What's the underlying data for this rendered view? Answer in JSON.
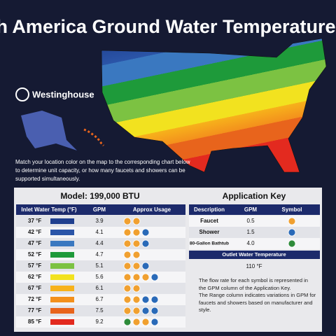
{
  "header": {
    "title": "North America Ground Water Temperature Map",
    "brand": "Westinghouse",
    "instructions": "Match your location color on the map to the corresponding chart below to determine unit capacity, or how many faucets and showers can be supported simultaneously."
  },
  "capacity_table": {
    "title": "Model: 199,000 BTU",
    "columns": [
      "Inlet Water Temp (°F)",
      "GPM",
      "Approx Usage"
    ],
    "rows": [
      [
        "37 °F",
        "3.9"
      ],
      [
        "42 °F",
        "4.1"
      ],
      [
        "47 °F",
        "4.4"
      ],
      [
        "52 °F",
        "4.7"
      ],
      [
        "57 °F",
        "5.1"
      ],
      [
        "62 °F",
        "5.6"
      ],
      [
        "67 °F",
        "6.1"
      ],
      [
        "72 °F",
        "6.7"
      ],
      [
        "77 °F",
        "7.5"
      ],
      [
        "85 °F",
        "9.2"
      ]
    ]
  },
  "application_key": {
    "title": "Application Key",
    "columns": [
      "Description",
      "GPM",
      "Symbol"
    ],
    "rows": [
      [
        "Faucet",
        "0.5"
      ],
      [
        "Shower",
        "1.5"
      ],
      [
        "80-Gallon Bathtub",
        "4.0"
      ]
    ],
    "outlet_label": "Outlet Water Temperature",
    "outlet_value": "110 °F",
    "notes": [
      "The flow rate for each symbol is represented in the GPM column of the Application Key.",
      "The Range column indicates variations in GPM for faucets and showers based on manufacturer and style."
    ]
  }
}
